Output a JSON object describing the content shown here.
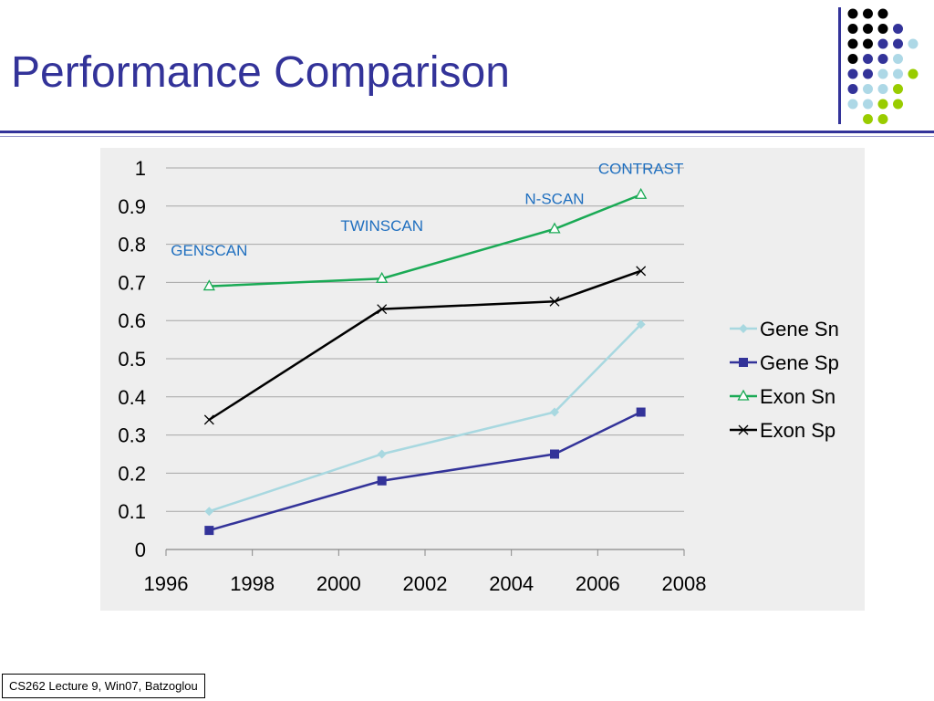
{
  "slide": {
    "title": "Performance Comparison",
    "footer": "CS262 Lecture 9, Win07, Batzoglou"
  },
  "decor": {
    "dot_grid": [
      [
        "#000000",
        "#000000",
        "#000000"
      ],
      [
        "#000000",
        "#000000",
        "#000000",
        "#333399"
      ],
      [
        "#000000",
        "#000000",
        "#333399",
        "#333399",
        "#add8e6"
      ],
      [
        "#000000",
        "#333399",
        "#333399",
        "#add8e6"
      ],
      [
        "#333399",
        "#333399",
        "#add8e6",
        "#add8e6",
        "#99cc00"
      ],
      [
        "#333399",
        "#add8e6",
        "#add8e6",
        "#99cc00"
      ],
      [
        "#add8e6",
        "#add8e6",
        "#99cc00",
        "#99cc00"
      ],
      [
        "#99cc00",
        "#99cc00"
      ]
    ]
  },
  "colors": {
    "title": "#333399",
    "chart_bg": "#eeeeee",
    "annotation": "#1f6fbf"
  },
  "chart_data": {
    "type": "line",
    "title": "",
    "xlabel": "",
    "ylabel": "",
    "xlim": [
      1996,
      2008
    ],
    "ylim": [
      0,
      1
    ],
    "x_ticks": [
      "1996",
      "1998",
      "2000",
      "2002",
      "2004",
      "2006",
      "2008"
    ],
    "y_ticks": [
      "0",
      "0.1",
      "0.2",
      "0.3",
      "0.4",
      "0.5",
      "0.6",
      "0.7",
      "0.8",
      "0.9",
      "1"
    ],
    "grid": "horizontal",
    "legend_position": "right",
    "x": [
      1997,
      2001,
      2005,
      2007
    ],
    "series": [
      {
        "name": "Gene Sn",
        "values": [
          0.1,
          0.25,
          0.36,
          0.59
        ],
        "color": "#a8d8e0",
        "marker": "diamond"
      },
      {
        "name": "Gene Sp",
        "values": [
          0.05,
          0.18,
          0.25,
          0.36
        ],
        "color": "#333399",
        "marker": "square"
      },
      {
        "name": "Exon Sn",
        "values": [
          0.69,
          0.71,
          0.84,
          0.93
        ],
        "color": "#1aaa55",
        "marker": "triangle"
      },
      {
        "name": "Exon Sp",
        "values": [
          0.34,
          0.63,
          0.65,
          0.73
        ],
        "color": "#000000",
        "marker": "x"
      }
    ],
    "annotations": [
      {
        "text": "GENSCAN",
        "x": 1997,
        "y": 0.77
      },
      {
        "text": "TWINSCAN",
        "x": 2001,
        "y": 0.835
      },
      {
        "text": "N-SCAN",
        "x": 2005,
        "y": 0.905
      },
      {
        "text": "CONTRAST",
        "x": 2007,
        "y": 0.985
      }
    ]
  }
}
